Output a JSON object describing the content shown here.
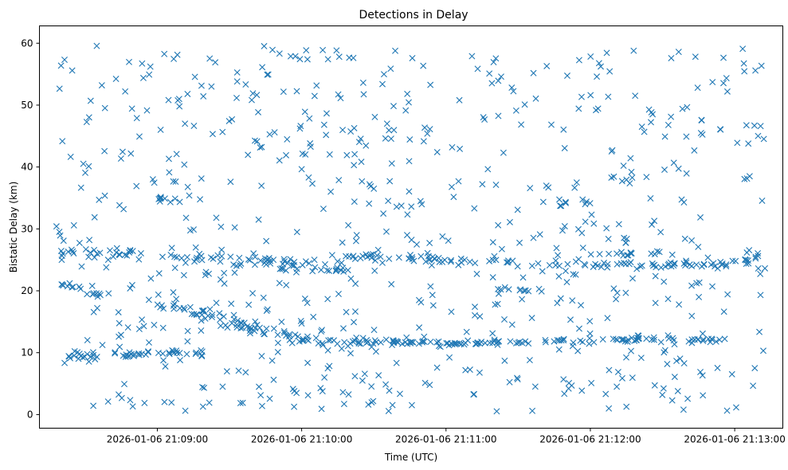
{
  "chart_data": {
    "type": "scatter",
    "title": "Detections in Delay",
    "xlabel": "Time (UTC)",
    "ylabel": "Bistatic Delay (km)",
    "marker": "x",
    "color": "#1f77b4",
    "grid": false,
    "x_range": [
      "2026-01-06 21:08:11",
      "2026-01-06 21:13:20"
    ],
    "ylim": [
      -2.2,
      62.8
    ],
    "x_ticks": [
      "2026-01-06 21:09:00",
      "2026-01-06 21:10:00",
      "2026-01-06 21:11:00",
      "2026-01-06 21:12:00",
      "2026-01-06 21:13:00"
    ],
    "y_ticks": [
      0,
      10,
      20,
      30,
      40,
      50,
      60
    ],
    "series": [
      {
        "tracks": [
          {
            "x": [
              "2026-01-06 21:08:20",
              "2026-01-06 21:09:00",
              "2026-01-06 21:09:30",
              "2026-01-06 21:10:00",
              "2026-01-06 21:10:30",
              "2026-01-06 21:11:00",
              "2026-01-06 21:11:30",
              "2026-01-06 21:12:00",
              "2026-01-06 21:12:30",
              "2026-01-06 21:13:00",
              "2026-01-06 21:13:10"
            ],
            "y": [
              26.0,
              25.5,
              25.0,
              24.5,
              25.5,
              25.0,
              24.5,
              24.5,
              24.0,
              24.5,
              25.5
            ],
            "count": 190,
            "spread": 0.6
          },
          {
            "x": [
              "2026-01-06 21:08:20",
              "2026-01-06 21:08:40",
              "2026-01-06 21:09:00",
              "2026-01-06 21:09:20"
            ],
            "y": [
              9.5,
              9.5,
              10.0,
              10.0
            ],
            "count": 45,
            "spread": 0.4
          },
          {
            "x": [
              "2026-01-06 21:09:00",
              "2026-01-06 21:09:30",
              "2026-01-06 21:10:00",
              "2026-01-06 21:10:30"
            ],
            "y": [
              18.5,
              15.0,
              12.0,
              11.8
            ],
            "count": 95,
            "spread": 0.8
          },
          {
            "x": [
              "2026-01-06 21:10:30",
              "2026-01-06 21:11:00",
              "2026-01-06 21:11:30",
              "2026-01-06 21:12:00",
              "2026-01-06 21:12:30",
              "2026-01-06 21:13:00"
            ],
            "y": [
              11.8,
              11.5,
              11.8,
              12.0,
              12.2,
              12.0
            ],
            "count": 110,
            "spread": 0.3
          },
          {
            "x": [
              "2026-01-06 21:08:20",
              "2026-01-06 21:08:40"
            ],
            "y": [
              21.5,
              19.0
            ],
            "count": 14,
            "spread": 0.5
          },
          {
            "x": [
              "2026-01-06 21:09:50",
              "2026-01-06 21:10:20"
            ],
            "y": [
              23.5,
              23.5
            ],
            "count": 18,
            "spread": 0.3
          },
          {
            "x": [
              "2026-01-06 21:09:00",
              "2026-01-06 21:09:10"
            ],
            "y": [
              34.8,
              34.5
            ],
            "count": 10,
            "spread": 0.3
          },
          {
            "x": [
              "2026-01-06 21:11:20",
              "2026-01-06 21:11:40"
            ],
            "y": [
              20.5,
              20.0
            ],
            "count": 10,
            "spread": 0.3
          },
          {
            "x": [
              "2026-01-06 21:11:40",
              "2026-01-06 21:12:00"
            ],
            "y": [
              34.5,
              34.0
            ],
            "count": 10,
            "spread": 0.4
          },
          {
            "x": [
              "2026-01-06 21:12:00",
              "2026-01-06 21:12:30"
            ],
            "y": [
              26.0,
              26.0
            ],
            "count": 14,
            "spread": 0.3
          }
        ],
        "clutter": {
          "count": 680,
          "y_range": [
            0.5,
            60.0
          ]
        },
        "seed": 20260106
      }
    ]
  }
}
